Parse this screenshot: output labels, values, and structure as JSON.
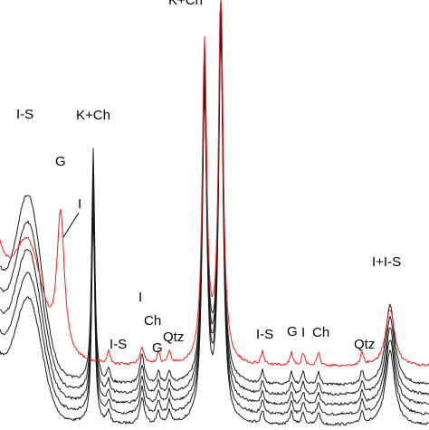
{
  "chart_data": {
    "type": "line",
    "title": "",
    "xlabel": "",
    "ylabel": "",
    "axes_visible": false,
    "grid": false,
    "legend": "none",
    "colors": {
      "dark_traces": "#1a1a1a",
      "highlight_trace": "#e8231e",
      "annotation_line": "#000000"
    },
    "peak_labels": [
      {
        "text": "K+Ch",
        "peak": "dominant"
      },
      {
        "text": "I-S",
        "peak": "low-angle hump"
      },
      {
        "text": "G",
        "peak": "red trace peak"
      },
      {
        "text": "I",
        "peak": "shoulder, marked by leader line"
      },
      {
        "text": "K+Ch",
        "peak": "sharp peak"
      },
      {
        "text": "I",
        "peak": "small peak"
      },
      {
        "text": "Ch",
        "peak": "small peak"
      },
      {
        "text": "I-S",
        "peak": "weak peak"
      },
      {
        "text": "G",
        "peak": "weak peak"
      },
      {
        "text": "Qtz",
        "peak": "weak peak"
      },
      {
        "text": "I-S",
        "peak": "weak peak"
      },
      {
        "text": "G",
        "peak": "weak peak"
      },
      {
        "text": "I",
        "peak": "weak peak"
      },
      {
        "text": "Ch",
        "peak": "weak peak"
      },
      {
        "text": "Qtz",
        "peak": "weak peak"
      },
      {
        "text": "I+I-S",
        "peak": "broad peak"
      }
    ],
    "series": [
      {
        "style": "dark",
        "offset": 0,
        "peaks": {
          "hump": 0.62,
          "red_peak": 0.0,
          "kch_sharp": 0.78,
          "ich": 0.32,
          "main": 1.0,
          "iis": 0.55
        }
      },
      {
        "style": "dark",
        "offset": 1,
        "peaks": {
          "hump": 0.68,
          "red_peak": 0.0,
          "kch_sharp": 0.8,
          "ich": 0.33,
          "main": 1.0,
          "iis": 0.56
        }
      },
      {
        "style": "dark",
        "offset": 2,
        "peaks": {
          "hump": 0.74,
          "red_peak": 0.0,
          "kch_sharp": 0.82,
          "ich": 0.34,
          "main": 1.0,
          "iis": 0.57
        }
      },
      {
        "style": "dark",
        "offset": 3,
        "peaks": {
          "hump": 0.82,
          "red_peak": 0.0,
          "kch_sharp": 0.84,
          "ich": 0.35,
          "main": 1.0,
          "iis": 0.58
        }
      },
      {
        "style": "dark",
        "offset": 4,
        "peaks": {
          "hump": 0.9,
          "red_peak": 0.0,
          "kch_sharp": 0.86,
          "ich": 0.36,
          "main": 1.0,
          "iis": 0.6
        }
      },
      {
        "style": "red",
        "offset": 5,
        "peaks": {
          "hump": 0.5,
          "red_peak": 0.75,
          "kch_sharp": 0.0,
          "ich": 0.2,
          "main": 0.98,
          "iis": 0.42
        }
      }
    ]
  }
}
